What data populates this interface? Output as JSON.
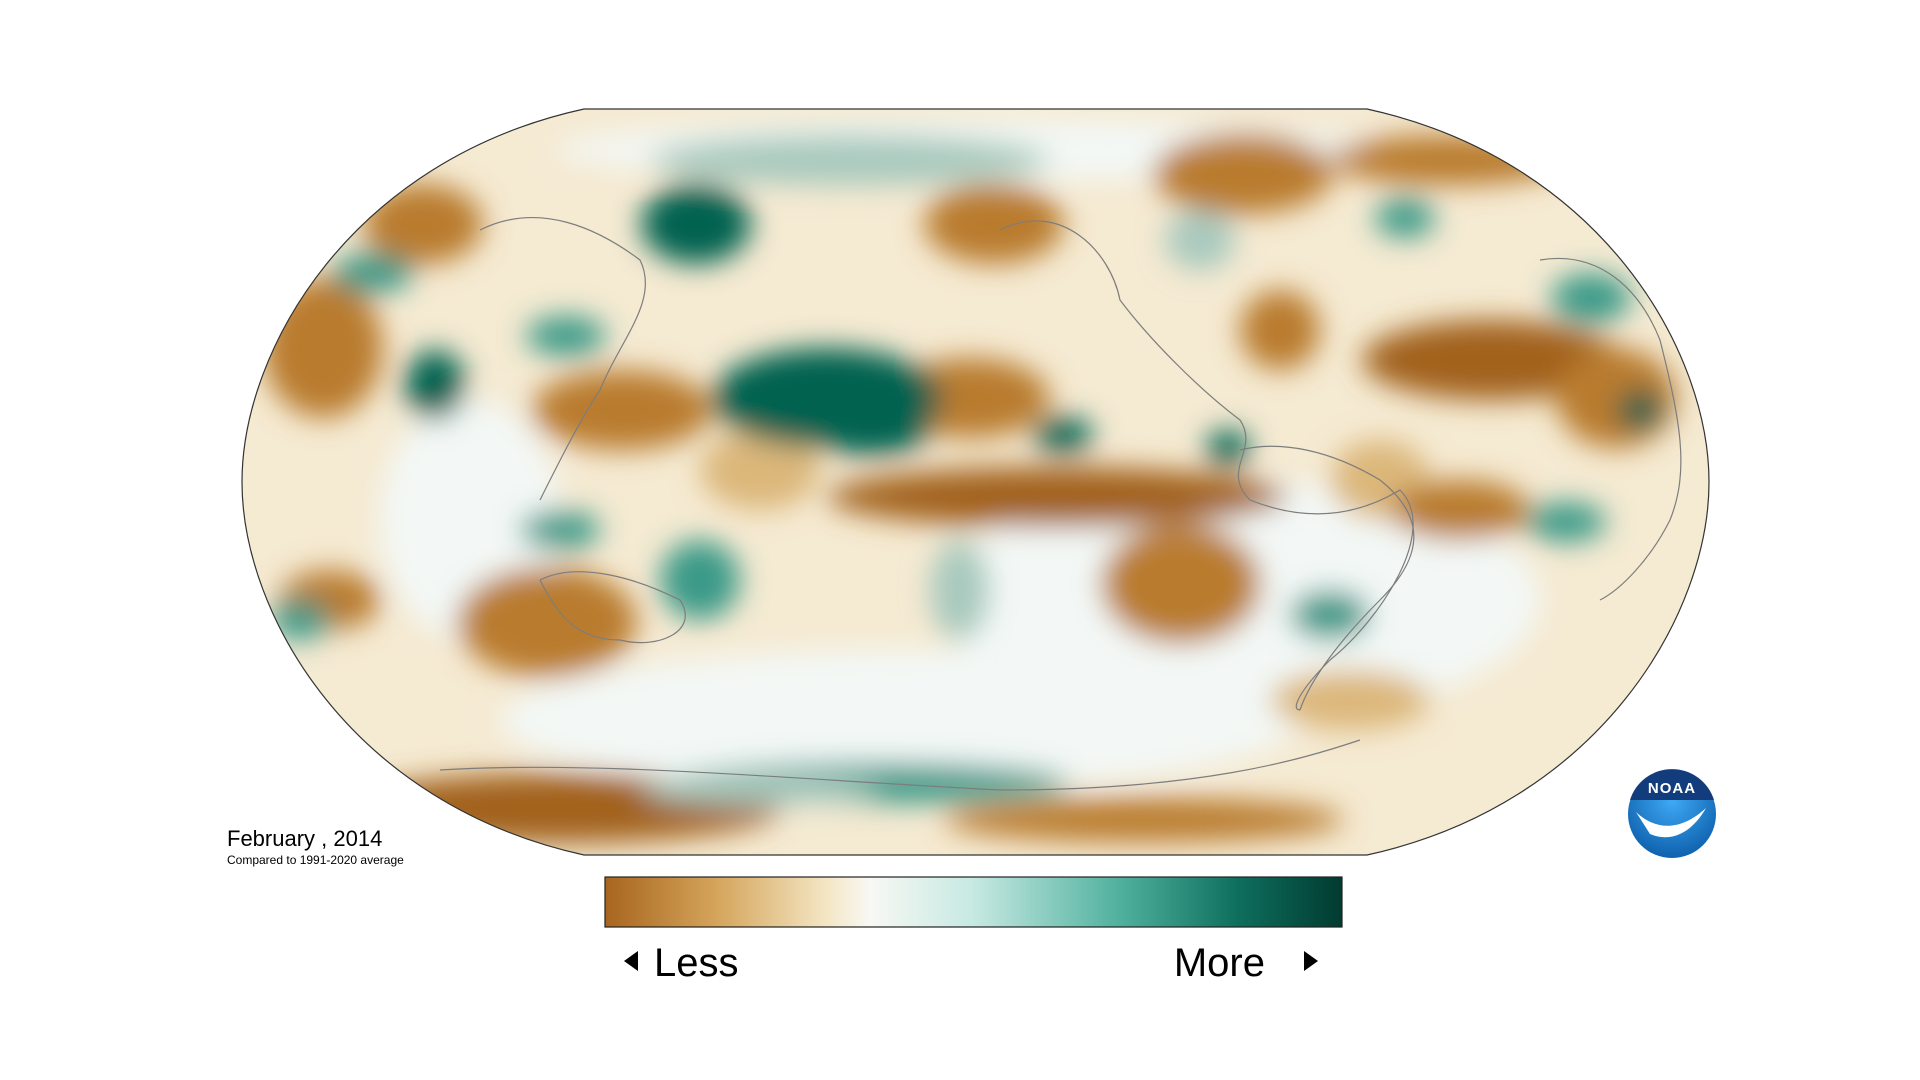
{
  "map": {
    "date_label": "February , 2014",
    "comparison": "Compared to 1991-2020 average"
  },
  "legend": {
    "low_label": "Less",
    "high_label": "More"
  },
  "logo": {
    "text": "NOAA"
  }
}
